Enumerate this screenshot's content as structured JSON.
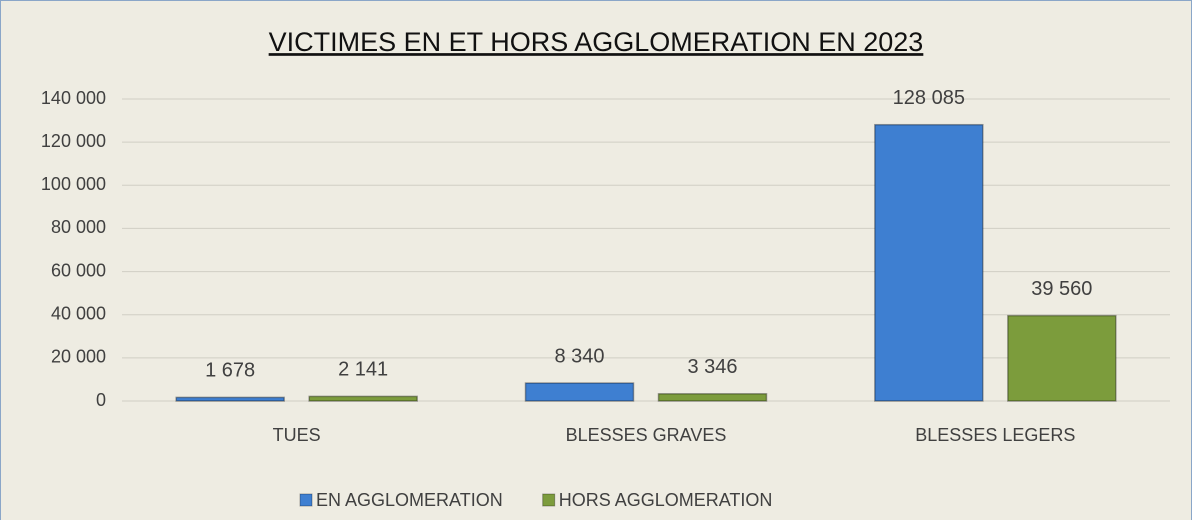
{
  "chart_data": {
    "type": "bar",
    "title": "VICTIMES EN ET HORS AGGLOMERATION EN 2023",
    "categories": [
      "TUES",
      "BLESSES GRAVES",
      "BLESSES LEGERS"
    ],
    "series": [
      {
        "name": "EN AGGLOMERATION",
        "color": "#3e7fd1",
        "values": [
          1678,
          8340,
          128085
        ],
        "value_labels": [
          "1 678",
          "8 340",
          "128 085"
        ]
      },
      {
        "name": "HORS AGGLOMERATION",
        "color": "#7c9c3c",
        "values": [
          2141,
          3346,
          39560
        ],
        "value_labels": [
          "2 141",
          "3 346",
          "39 560"
        ]
      }
    ],
    "ylim": [
      0,
      140000
    ],
    "yticks": [
      0,
      {
        "value": 20000,
        "label": "20 000"
      },
      {
        "value": 40000,
        "label": "40 000"
      },
      {
        "value": 60000,
        "label": "60 000"
      },
      {
        "value": 80000,
        "label": "80 000"
      },
      {
        "value": 100000,
        "label": "100 000"
      },
      {
        "value": 120000,
        "label": "120 000"
      },
      {
        "value": 140000,
        "label": "140 000"
      }
    ],
    "grid": true,
    "legend": "bottom"
  }
}
